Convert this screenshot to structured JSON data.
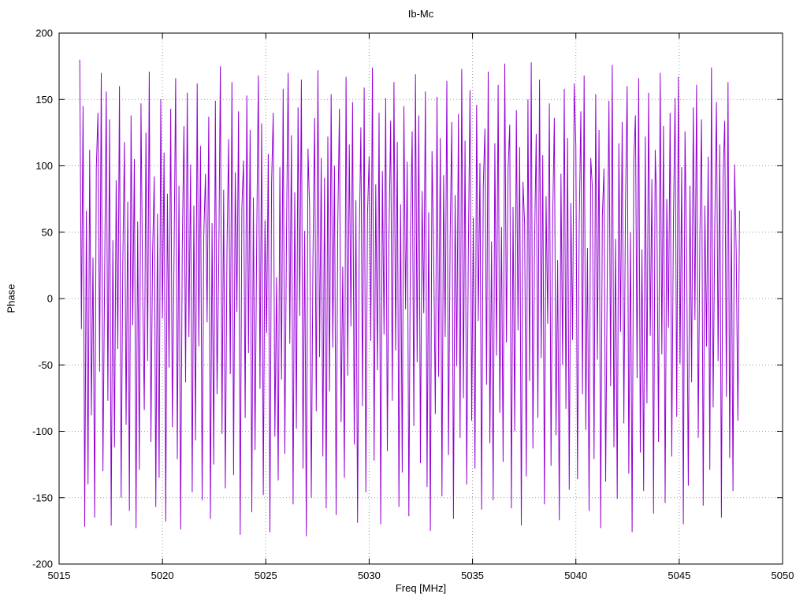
{
  "page": {
    "background": "#ffffff"
  },
  "chart_data": {
    "type": "line",
    "title": "Ib-Mc",
    "xlabel": "Freq [MHz]",
    "ylabel": "Phase",
    "xlim": [
      5015,
      5050
    ],
    "ylim": [
      -200,
      200
    ],
    "x_ticks": [
      5015,
      5020,
      5025,
      5030,
      5035,
      5040,
      5045,
      5050
    ],
    "y_ticks": [
      -200,
      -150,
      -100,
      -50,
      0,
      50,
      100,
      150,
      200
    ],
    "grid": true,
    "legend": "none",
    "x_start": 5016.0,
    "x_step": 0.08,
    "series": [
      {
        "name": "phase",
        "color": "#9400d3",
        "values": [
          180,
          -23,
          145,
          -172,
          66,
          -140,
          112,
          -88,
          31,
          -165,
          98,
          140,
          -55,
          170,
          -130,
          12,
          156,
          -77,
          135,
          -171,
          44,
          -112,
          89,
          -38,
          160,
          -150,
          25,
          118,
          -95,
          73,
          -160,
          138,
          -20,
          105,
          -173,
          58,
          -129,
          147,
          6,
          -84,
          125,
          -47,
          171,
          -108,
          33,
          92,
          -157,
          64,
          -135,
          150,
          -15,
          110,
          -168,
          79,
          -52,
          143,
          -97,
          28,
          166,
          -121,
          85,
          -174,
          39,
          130,
          -63,
          155,
          -29,
          101,
          -146,
          70,
          -107,
          162,
          -36,
          115,
          -152,
          48,
          94,
          -18,
          137,
          -166,
          57,
          -125,
          149,
          -72,
          21,
          175,
          -102,
          82,
          -143,
          35,
          120,
          -57,
          163,
          -133,
          95,
          -10,
          141,
          -178,
          68,
          104,
          -90,
          153,
          -41,
          127,
          -161,
          76,
          -114,
          42,
          168,
          -68,
          132,
          -148,
          59,
          -26,
          109,
          -176,
          87,
          140,
          -104,
          16,
          -137,
          99,
          -61,
          158,
          -117,
          46,
          170,
          -34,
          123,
          -155,
          80,
          -98,
          144,
          -13,
          165,
          -128,
          51,
          -179,
          113,
          67,
          -150,
          30,
          136,
          -85,
          172,
          -44,
          106,
          -119,
          91,
          -158,
          122,
          -70,
          154,
          -37,
          100,
          -163,
          55,
          143,
          -93,
          24,
          -135,
          167,
          -58,
          116,
          -21,
          148,
          -110,
          74,
          -169,
          40,
          129,
          -81,
          159,
          -146,
          63,
          107,
          -32,
          174,
          -122,
          86,
          -54,
          140,
          -170,
          96,
          -27,
          151,
          -115,
          49,
          134,
          -77,
          163,
          -39,
          118,
          -157,
          71,
          -131,
          145,
          -8,
          103,
          -164,
          52,
          126,
          -96,
          169,
          -48,
          138,
          -124,
          81,
          -11,
          156,
          -142,
          65,
          -175,
          111,
          34,
          -87,
          152,
          -59,
          121,
          -149,
          93,
          -29,
          164,
          -118,
          47,
          133,
          -166,
          78,
          -51,
          139,
          -105,
          173,
          -75,
          119,
          -140,
          36,
          157,
          -92,
          61,
          -128,
          146,
          -17,
          102,
          -159,
          84,
          128,
          -65,
          171,
          -109,
          43,
          -152,
          117,
          -43,
          161,
          -86,
          54,
          -123,
          177,
          -33,
          97,
          131,
          -158,
          69,
          -100,
          142,
          -24,
          114,
          -171,
          88,
          56,
          -134,
          150,
          -62,
          178,
          -113,
          41,
          124,
          -90,
          165,
          -45,
          108,
          -155,
          77,
          -19,
          147,
          -126,
          60,
          136,
          -103,
          29,
          -167,
          94,
          -50,
          158,
          -83,
          121,
          -144,
          72,
          -31,
          162,
          115,
          -136,
          53,
          141,
          -72,
          168,
          -99,
          38,
          -160,
          106,
          83,
          -121,
          154,
          -46,
          127,
          -173,
          62,
          98,
          -138,
          22,
          149,
          -66,
          176,
          -112,
          45,
          -151,
          117,
          -25,
          133,
          -94,
          71,
          160,
          -132,
          50,
          -176,
          104,
          138,
          -60,
          166,
          -116,
          37,
          -145,
          122,
          -79,
          155,
          -28,
          90,
          -162,
          112,
          64,
          -108,
          170,
          -42,
          130,
          -154,
          75,
          -22,
          140,
          -119,
          58,
          151,
          -89,
          167,
          -49,
          99,
          -170,
          126,
          32,
          -141,
          85,
          -63,
          144,
          -16,
          161,
          -105,
          48,
          135,
          -156,
          70,
          -36,
          107,
          -129,
          174,
          -82,
          55,
          148,
          -47,
          116,
          -165,
          92,
          134,
          -74,
          163,
          -120,
          67,
          -145,
          101,
          35,
          -92,
          66
        ]
      }
    ]
  }
}
